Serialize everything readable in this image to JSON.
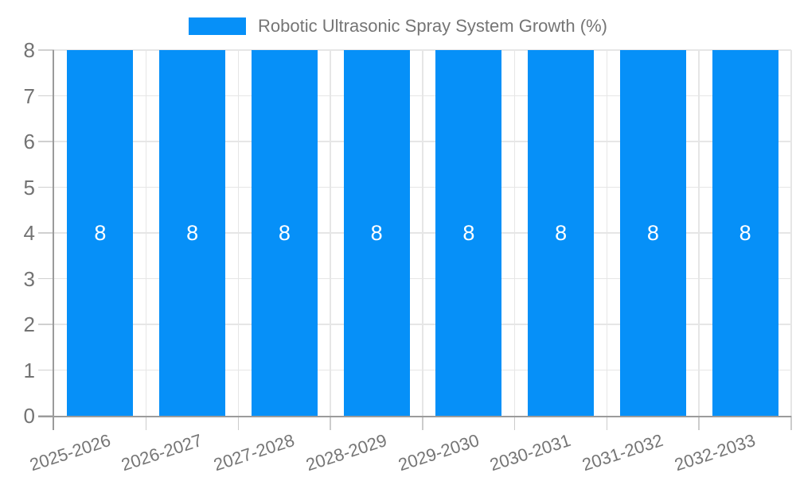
{
  "legend": {
    "label": "Robotic Ultrasonic Spray System Growth (%)"
  },
  "colors": {
    "bar": "#0690F8",
    "axis_line": "#9b9b9b",
    "gridline": "#e6e6e6",
    "tick": "#cccccc",
    "text": "#757575",
    "bar_label": "#ffffff",
    "background": "#ffffff"
  },
  "chart_data": {
    "type": "bar",
    "title": "Robotic Ultrasonic Spray System Growth (%)",
    "categories": [
      "2025-2026",
      "2026-2027",
      "2027-2028",
      "2028-2029",
      "2029-2030",
      "2030-2031",
      "2031-2032",
      "2032-2033"
    ],
    "values": [
      8,
      8,
      8,
      8,
      8,
      8,
      8,
      8
    ],
    "series": [
      {
        "name": "Robotic Ultrasonic Spray System Growth (%)",
        "values": [
          8,
          8,
          8,
          8,
          8,
          8,
          8,
          8
        ]
      }
    ],
    "xlabel": "",
    "ylabel": "",
    "ylim": [
      0,
      8
    ],
    "yticks": [
      0,
      1,
      2,
      3,
      4,
      5,
      6,
      7,
      8
    ],
    "grid": true,
    "legend_position": "top",
    "value_labels_shown": true,
    "value_label_position": "center"
  }
}
